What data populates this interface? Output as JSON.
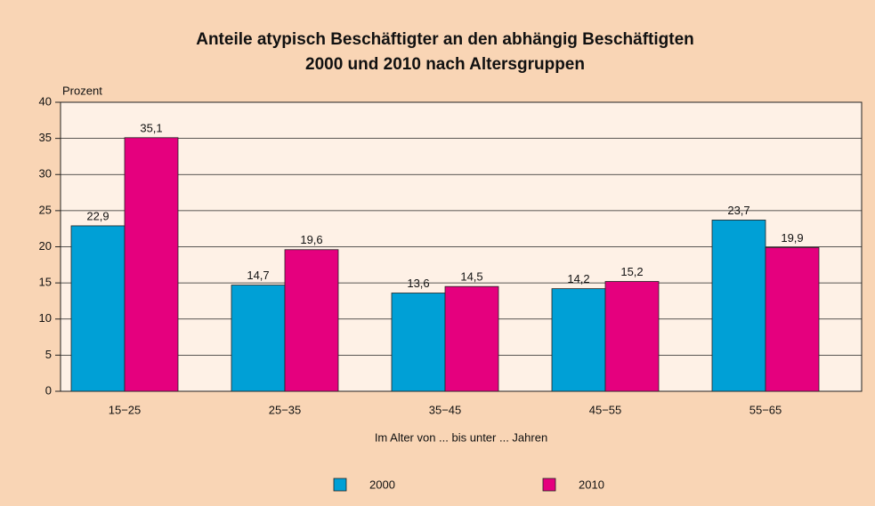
{
  "chart_data": {
    "type": "bar",
    "title": [
      "Anteile atypisch Beschäftigter an den abhängig Beschäftigten",
      "2000 und 2010 nach Altersgruppen"
    ],
    "y_label": "Prozent",
    "x_label": "Im Alter von ... bis unter ... Jahren",
    "categories": [
      "15−25",
      "25−35",
      "35−45",
      "45−55",
      "55−65"
    ],
    "series": [
      {
        "name": "2000",
        "color": "#00a0d6",
        "values": [
          22.9,
          14.7,
          13.6,
          14.2,
          23.7
        ],
        "value_labels": [
          "22,9",
          "14,7",
          "13,6",
          "14,2",
          "23,7"
        ]
      },
      {
        "name": "2010",
        "color": "#e5007e",
        "values": [
          35.1,
          19.6,
          14.5,
          15.2,
          19.9
        ],
        "value_labels": [
          "35,1",
          "19,6",
          "14,5",
          "15,2",
          "19,9"
        ]
      }
    ],
    "ylim": [
      0,
      40
    ],
    "yticks": [
      0,
      5,
      10,
      15,
      20,
      25,
      30,
      35,
      40
    ],
    "grid": true
  }
}
